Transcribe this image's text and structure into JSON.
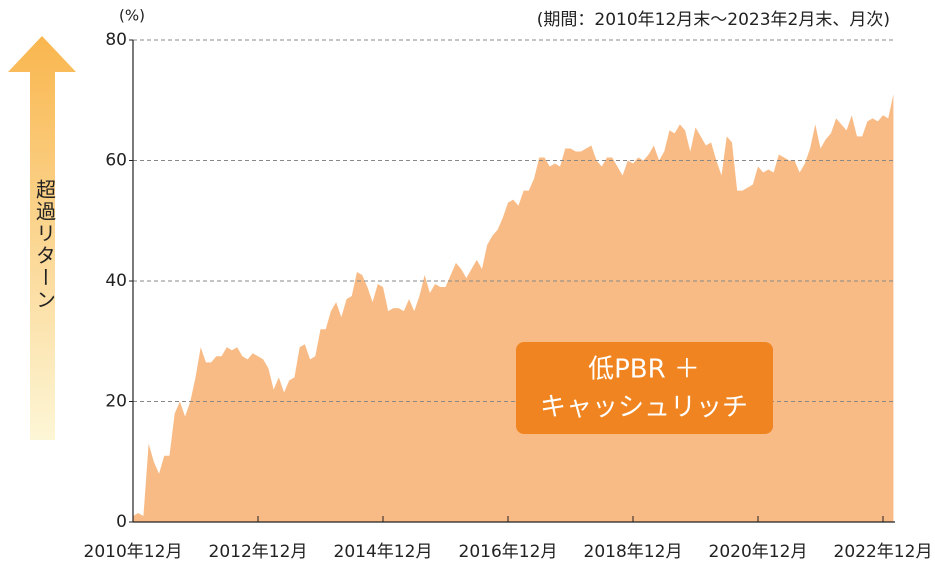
{
  "chart_data": {
    "type": "area",
    "y_unit_label": "(%)",
    "subtitle": "(期間：2010年12月末～2023年2月末、月次)",
    "axis_label": "超過リターン",
    "annotation": [
      "低PBR ＋",
      "キャッシュリッチ"
    ],
    "color": "#f8bb86",
    "grid": true,
    "ylim": [
      0,
      80
    ],
    "yticks": [
      0,
      20,
      40,
      60,
      80
    ],
    "categories": [
      "2010年12月",
      null,
      null,
      null,
      null,
      null,
      null,
      null,
      null,
      null,
      null,
      null,
      null,
      null,
      null,
      null,
      null,
      null,
      null,
      null,
      null,
      null,
      null,
      null,
      "2012年12月",
      null,
      null,
      null,
      null,
      null,
      null,
      null,
      null,
      null,
      null,
      null,
      null,
      null,
      null,
      null,
      null,
      null,
      null,
      null,
      null,
      null,
      null,
      null,
      "2014年12月",
      null,
      null,
      null,
      null,
      null,
      null,
      null,
      null,
      null,
      null,
      null,
      null,
      null,
      null,
      null,
      null,
      null,
      null,
      null,
      null,
      null,
      null,
      null,
      "2016年12月",
      null,
      null,
      null,
      null,
      null,
      null,
      null,
      null,
      null,
      null,
      null,
      null,
      null,
      null,
      null,
      null,
      null,
      null,
      null,
      null,
      null,
      null,
      null,
      "2018年12月",
      null,
      null,
      null,
      null,
      null,
      null,
      null,
      null,
      null,
      null,
      null,
      null,
      null,
      null,
      null,
      null,
      null,
      null,
      null,
      null,
      null,
      null,
      null,
      "2020年12月",
      null,
      null,
      null,
      null,
      null,
      null,
      null,
      null,
      null,
      null,
      null,
      null,
      null,
      null,
      null,
      null,
      null,
      null,
      null,
      null,
      null,
      null,
      null,
      "2022年12月",
      null,
      null
    ],
    "values": [
      1,
      1.5,
      1,
      13,
      10,
      8,
      11,
      11,
      18,
      20,
      17.5,
      20,
      24,
      29,
      26.5,
      26.5,
      27.5,
      27.5,
      29,
      28.5,
      29,
      27.5,
      27,
      28,
      27.5,
      27,
      25.5,
      22,
      24,
      21.5,
      23.5,
      24,
      29,
      29.5,
      27,
      27.5,
      32,
      32,
      35,
      36.5,
      34,
      37,
      37.5,
      41.5,
      41,
      39,
      36.5,
      39.5,
      39,
      35,
      35.5,
      35.5,
      35,
      37,
      35,
      37.5,
      41,
      38,
      39.5,
      39,
      39,
      41,
      43,
      42,
      40.5,
      42,
      43.5,
      42,
      46,
      47.5,
      48.5,
      50.5,
      53,
      53.5,
      52.5,
      55,
      55,
      57,
      60.5,
      60.5,
      59,
      59.5,
      59,
      62,
      62,
      61.5,
      61.5,
      62,
      62.5,
      60,
      59,
      60.5,
      60.5,
      59,
      57.5,
      60,
      59.5,
      60.5,
      60,
      61,
      62.5,
      60,
      61.5,
      65,
      64.5,
      66,
      65,
      61.5,
      65.5,
      64,
      62.5,
      63,
      60,
      57.5,
      64,
      63,
      55,
      55,
      55.5,
      56,
      59,
      58,
      58.5,
      58,
      61,
      60.5,
      60,
      60,
      58,
      59.5,
      62,
      66,
      62,
      63.5,
      64.5,
      67,
      66,
      65,
      67.5,
      64,
      64,
      66.5,
      67,
      66.5,
      67.5,
      67,
      71
    ]
  }
}
